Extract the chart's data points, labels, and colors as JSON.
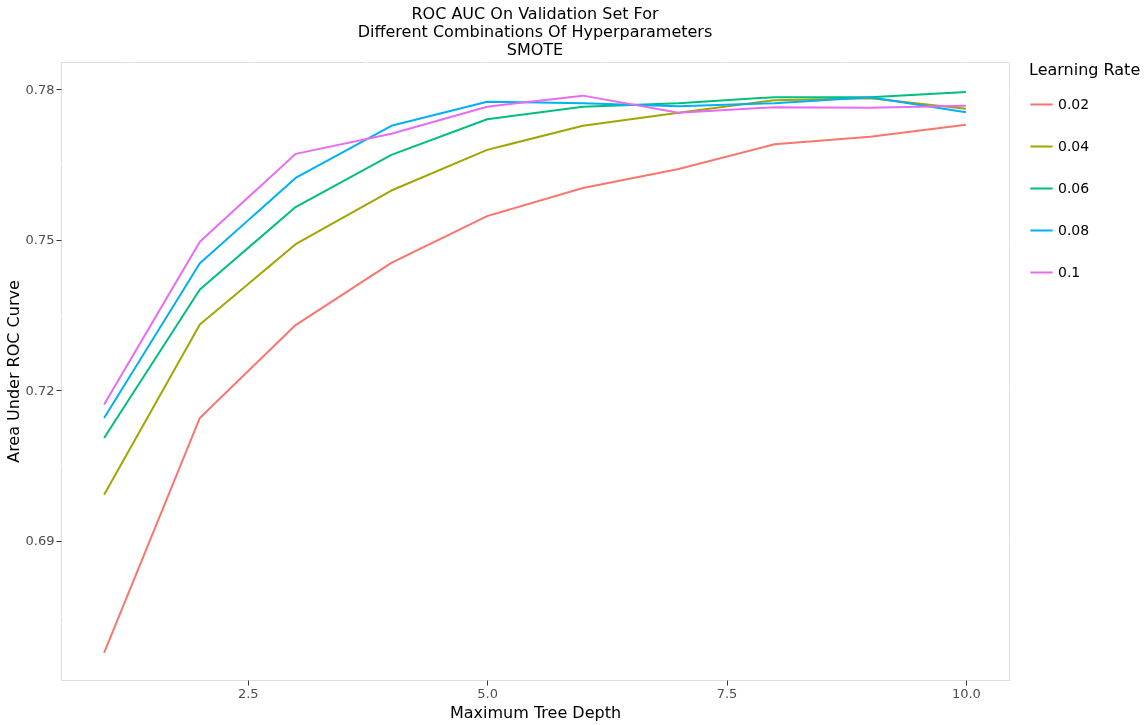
{
  "chart_data": {
    "type": "line",
    "title": [
      "ROC AUC On Validation Set For",
      "Different Combinations Of Hyperparameters",
      "SMOTE"
    ],
    "xlabel": "Maximum Tree Depth",
    "ylabel": "Area Under ROC Curve",
    "legend_title": "Learning Rate",
    "x": [
      1,
      2,
      3,
      4,
      5,
      6,
      7,
      8,
      9,
      10
    ],
    "series": [
      {
        "name": "0.02",
        "color": "#F8766D",
        "values": [
          0.6677,
          0.7145,
          0.733,
          0.7454,
          0.7547,
          0.7603,
          0.7641,
          0.769,
          0.7705,
          0.7729
        ]
      },
      {
        "name": "0.04",
        "color": "#A3A500",
        "values": [
          0.6992,
          0.7331,
          0.7491,
          0.7598,
          0.7679,
          0.7727,
          0.7753,
          0.7778,
          0.7782,
          0.7761
        ]
      },
      {
        "name": "0.06",
        "color": "#00BF7D",
        "values": [
          0.7105,
          0.7401,
          0.7565,
          0.7669,
          0.774,
          0.7765,
          0.7772,
          0.7784,
          0.7784,
          0.7794
        ]
      },
      {
        "name": "0.08",
        "color": "#00B0F6",
        "values": [
          0.7145,
          0.7453,
          0.7623,
          0.7727,
          0.7775,
          0.7772,
          0.7766,
          0.7772,
          0.7784,
          0.7754
        ]
      },
      {
        "name": "0.1",
        "color": "#E76BF3",
        "values": [
          0.7172,
          0.7496,
          0.7671,
          0.7711,
          0.7765,
          0.7787,
          0.7753,
          0.7764,
          0.7763,
          0.7767
        ]
      }
    ],
    "xlim": [
      0.55,
      10.45
    ],
    "ylim": [
      0.6623,
      0.7854
    ],
    "xticks": [
      {
        "value": 2.5,
        "label": "2.5"
      },
      {
        "value": 5,
        "label": "5.0"
      },
      {
        "value": 7.5,
        "label": "7.5"
      },
      {
        "value": 10,
        "label": "10.0"
      }
    ],
    "yticks": [
      0.69,
      0.72,
      0.75,
      0.78
    ],
    "grid": true,
    "legend": "right",
    "line_style": "solid",
    "marker": "none"
  }
}
